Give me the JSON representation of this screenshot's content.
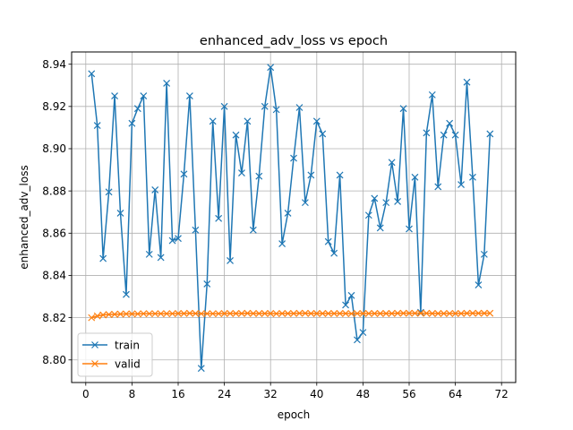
{
  "chart_data": {
    "type": "line",
    "title": "enhanced_adv_loss vs epoch",
    "xlabel": "epoch",
    "ylabel": "enhanced_adv_loss",
    "xlim": [
      -2.45,
      74.45
    ],
    "ylim": [
      8.7893,
      8.9458
    ],
    "xticks": [
      0,
      8,
      16,
      24,
      32,
      40,
      48,
      56,
      64,
      72
    ],
    "yticks": [
      8.8,
      8.82,
      8.84,
      8.86,
      8.88,
      8.9,
      8.92,
      8.94
    ],
    "ytick_labels": [
      "8.80",
      "8.82",
      "8.84",
      "8.86",
      "8.88",
      "8.90",
      "8.92",
      "8.94"
    ],
    "grid": true,
    "legend": "lower-left",
    "x": [
      1,
      2,
      3,
      4,
      5,
      6,
      7,
      8,
      9,
      10,
      11,
      12,
      13,
      14,
      15,
      16,
      17,
      18,
      19,
      20,
      21,
      22,
      23,
      24,
      25,
      26,
      27,
      28,
      29,
      30,
      31,
      32,
      33,
      34,
      35,
      36,
      37,
      38,
      39,
      40,
      41,
      42,
      43,
      44,
      45,
      46,
      47,
      48,
      49,
      50,
      51,
      52,
      53,
      54,
      55,
      56,
      57,
      58,
      59,
      60,
      61,
      62,
      63,
      64,
      65,
      66,
      67,
      68,
      69,
      70
    ],
    "series": [
      {
        "name": "train",
        "color": "#1f77b4",
        "marker": "x",
        "values": [
          8.9355,
          8.911,
          8.848,
          8.8795,
          8.925,
          8.8695,
          8.831,
          8.912,
          8.919,
          8.925,
          8.85,
          8.8805,
          8.8485,
          8.931,
          8.8565,
          8.8575,
          8.888,
          8.925,
          8.8615,
          8.796,
          8.836,
          8.913,
          8.867,
          8.92,
          8.847,
          8.9065,
          8.8885,
          8.913,
          8.8615,
          8.887,
          8.92,
          8.9385,
          8.9185,
          8.855,
          8.8695,
          8.8955,
          8.9195,
          8.8745,
          8.8875,
          8.913,
          8.907,
          8.856,
          8.8505,
          8.8875,
          8.826,
          8.8305,
          8.8095,
          8.813,
          8.8685,
          8.8765,
          8.8625,
          8.8745,
          8.8935,
          8.875,
          8.919,
          8.862,
          8.8865,
          8.8225,
          8.9075,
          8.9255,
          8.882,
          8.9065,
          8.912,
          8.9065,
          8.883,
          8.9315,
          8.8865,
          8.8355,
          8.85,
          8.907
        ]
      },
      {
        "name": "valid",
        "color": "#ff7f0e",
        "marker": "x",
        "values": [
          8.82,
          8.8208,
          8.8213,
          8.8215,
          8.8216,
          8.8217,
          8.8218,
          8.8218,
          8.8218,
          8.8219,
          8.8219,
          8.8219,
          8.8219,
          8.8219,
          8.8219,
          8.822,
          8.822,
          8.8221,
          8.822,
          8.8219,
          8.8219,
          8.8219,
          8.8219,
          8.822,
          8.822,
          8.822,
          8.822,
          8.8221,
          8.822,
          8.822,
          8.822,
          8.822,
          8.8219,
          8.822,
          8.822,
          8.822,
          8.8221,
          8.8221,
          8.822,
          8.822,
          8.822,
          8.822,
          8.822,
          8.822,
          8.822,
          8.8219,
          8.822,
          8.822,
          8.822,
          8.822,
          8.822,
          8.822,
          8.822,
          8.8221,
          8.8221,
          8.8221,
          8.8221,
          8.8221,
          8.8221,
          8.822,
          8.822,
          8.822,
          8.822,
          8.822,
          8.822,
          8.8221,
          8.8221,
          8.8221,
          8.8221,
          8.8221
        ]
      }
    ]
  }
}
